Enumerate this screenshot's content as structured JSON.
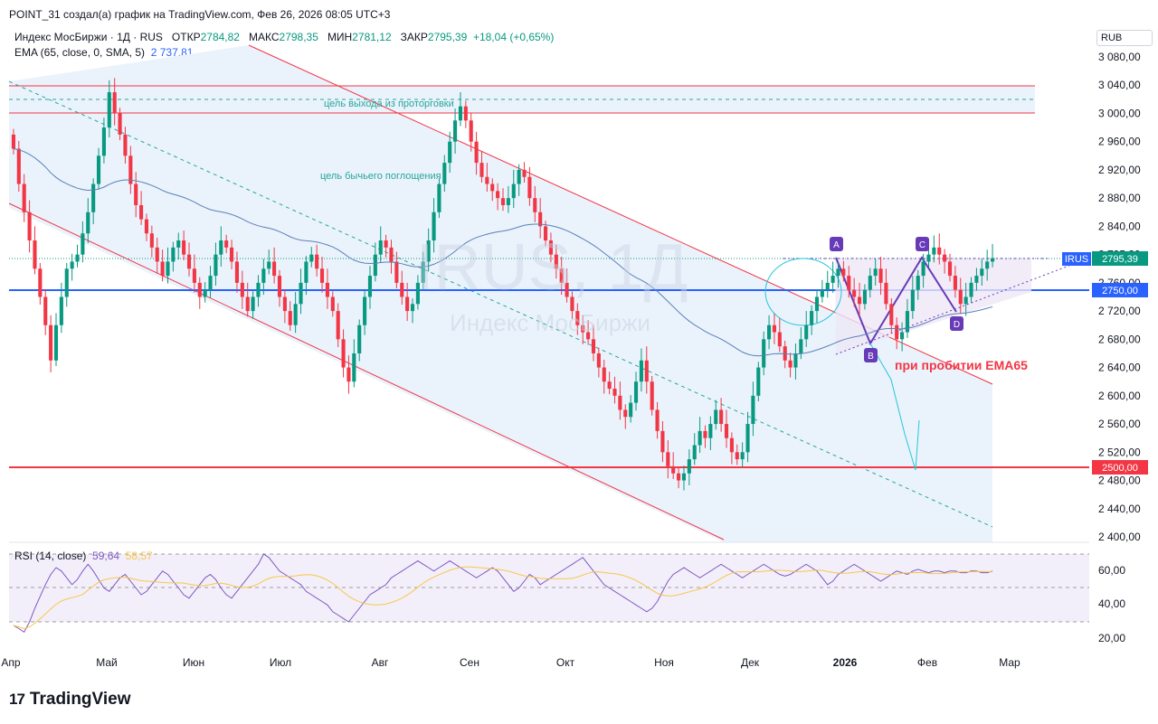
{
  "header": {
    "attribution": "POINT_31 создал(а) график на TradingView.com, Фев 26, 2026 08:05 UTC+3",
    "symbol": "Индекс МосБиржи · 1Д · RUS",
    "open_label": "ОТКР",
    "open": "2784,82",
    "high_label": "МАКС",
    "high": "2798,35",
    "low_label": "МИН",
    "low": "2781,12",
    "close_label": "ЗАКР",
    "close": "2795,39",
    "change": "+18,04 (+0,65%)",
    "ema_label": "EMA (65, close, 0, SMA, 5)",
    "ema_value": "2 737,81",
    "currency": "RUB"
  },
  "watermark": {
    "ticker": "IRUS, 1Д",
    "name": "Индекс МосБиржи"
  },
  "annotations": {
    "exit_target": "цель выхода из проторговки",
    "bull_target": "цель бычьего поглощения",
    "ema_break": "при пробитии EMA65",
    "points": [
      "A",
      "B",
      "C",
      "D"
    ]
  },
  "price_badges": {
    "symbol": "IRUS",
    "last": "2795,39",
    "level_blue": "2750,00",
    "level_red": "2500,00"
  },
  "colors": {
    "up": "#089981",
    "down": "#f23645",
    "ema": "#5b7fb8",
    "channel": "#e8f1fb",
    "red_line": "#f23645",
    "blue_line": "#2962ff",
    "rsi": "#7e57c2",
    "rsi_ma": "#f7c748",
    "pattern": "#673ab7"
  },
  "rsi": {
    "label": "RSI (14, close)",
    "value": "59,64",
    "ma_value": "58,57",
    "ticks": [
      "60,00",
      "40,00",
      "20,00"
    ]
  },
  "branding": {
    "logo_mark": "17",
    "logo_text": "TradingView"
  },
  "chart_data": {
    "type": "candlestick",
    "ylim": [
      2400,
      3080
    ],
    "y_ticks": [
      "3 080,00",
      "3 040,00",
      "3 000,00",
      "2 960,00",
      "2 920,00",
      "2 880,00",
      "2 840,00",
      "2 795,39",
      "2 760,00",
      "2 720,00",
      "2 680,00",
      "2 640,00",
      "2 600,00",
      "2 560,00",
      "2 520,00",
      "2 480,00",
      "2 440,00",
      "2 400,00"
    ],
    "x_ticks": [
      "Апр",
      "Май",
      "Июн",
      "Июл",
      "Авг",
      "Сен",
      "Окт",
      "Ноя",
      "Дек",
      "2026",
      "Фев",
      "Мар"
    ],
    "levels": [
      3040,
      3000,
      2750,
      2500
    ],
    "closes": [
      2950,
      2900,
      2860,
      2820,
      2780,
      2740,
      2700,
      2650,
      2700,
      2740,
      2780,
      2790,
      2800,
      2830,
      2860,
      2900,
      2940,
      2980,
      3030,
      3000,
      2970,
      2940,
      2900,
      2870,
      2850,
      2830,
      2810,
      2790,
      2770,
      2790,
      2810,
      2820,
      2800,
      2780,
      2760,
      2740,
      2750,
      2770,
      2800,
      2820,
      2810,
      2790,
      2760,
      2740,
      2720,
      2740,
      2760,
      2780,
      2790,
      2770,
      2740,
      2720,
      2700,
      2730,
      2760,
      2790,
      2800,
      2780,
      2760,
      2740,
      2720,
      2680,
      2640,
      2620,
      2660,
      2700,
      2740,
      2770,
      2800,
      2820,
      2810,
      2790,
      2760,
      2740,
      2720,
      2730,
      2760,
      2790,
      2820,
      2860,
      2900,
      2930,
      2960,
      2990,
      3010,
      2990,
      2960,
      2930,
      2910,
      2900,
      2890,
      2880,
      2870,
      2880,
      2900,
      2920,
      2910,
      2880,
      2860,
      2840,
      2820,
      2800,
      2780,
      2760,
      2740,
      2720,
      2700,
      2690,
      2680,
      2660,
      2640,
      2620,
      2610,
      2600,
      2580,
      2570,
      2590,
      2620,
      2650,
      2620,
      2580,
      2550,
      2520,
      2500,
      2490,
      2480,
      2490,
      2510,
      2530,
      2550,
      2540,
      2560,
      2580,
      2560,
      2540,
      2520,
      2510,
      2520,
      2560,
      2600,
      2640,
      2680,
      2700,
      2690,
      2670,
      2650,
      2640,
      2660,
      2680,
      2700,
      2720,
      2740,
      2750,
      2760,
      2770,
      2780,
      2770,
      2750,
      2740,
      2730,
      2750,
      2770,
      2780,
      2760,
      2730,
      2700,
      2680,
      2690,
      2720,
      2750,
      2770,
      2790,
      2800,
      2810,
      2800,
      2790,
      2770,
      2750,
      2730,
      2740,
      2760,
      2770,
      2780,
      2790,
      2795
    ],
    "rsi_values": [
      28,
      26,
      24,
      30,
      38,
      45,
      52,
      58,
      62,
      60,
      56,
      52,
      55,
      60,
      64,
      60,
      55,
      50,
      48,
      52,
      56,
      58,
      54,
      50,
      46,
      48,
      52,
      56,
      60,
      58,
      54,
      50,
      46,
      44,
      48,
      52,
      56,
      58,
      55,
      50,
      46,
      44,
      48,
      52,
      56,
      60,
      64,
      70,
      68,
      64,
      60,
      58,
      56,
      54,
      52,
      48,
      46,
      44,
      42,
      40,
      36,
      34,
      32,
      30,
      34,
      38,
      42,
      46,
      48,
      50,
      52,
      56,
      58,
      60,
      62,
      64,
      66,
      64,
      62,
      60,
      62,
      64,
      66,
      64,
      62,
      60,
      58,
      56,
      58,
      60,
      62,
      60,
      56,
      52,
      48,
      50,
      54,
      58,
      56,
      52,
      54,
      56,
      58,
      60,
      62,
      64,
      66,
      68,
      64,
      60,
      56,
      52,
      50,
      48,
      46,
      44,
      42,
      40,
      38,
      36,
      38,
      42,
      48,
      54,
      58,
      60,
      62,
      60,
      58,
      56,
      58,
      60,
      62,
      64,
      62,
      60,
      58,
      56,
      58,
      60,
      62,
      64,
      62,
      60,
      58,
      57,
      58,
      60,
      62,
      64,
      62,
      60,
      56,
      52,
      54,
      58,
      60,
      62,
      64,
      62,
      60,
      58,
      56,
      54,
      56,
      58,
      60,
      59,
      58,
      60,
      61,
      60,
      59,
      60,
      60,
      59,
      60,
      60,
      59,
      59,
      60,
      60,
      59,
      59,
      60
    ],
    "series": [
      {
        "name": "EMA (65, close, 0, SMA, 5)"
      },
      {
        "name": "RSI (14, close)"
      }
    ]
  }
}
